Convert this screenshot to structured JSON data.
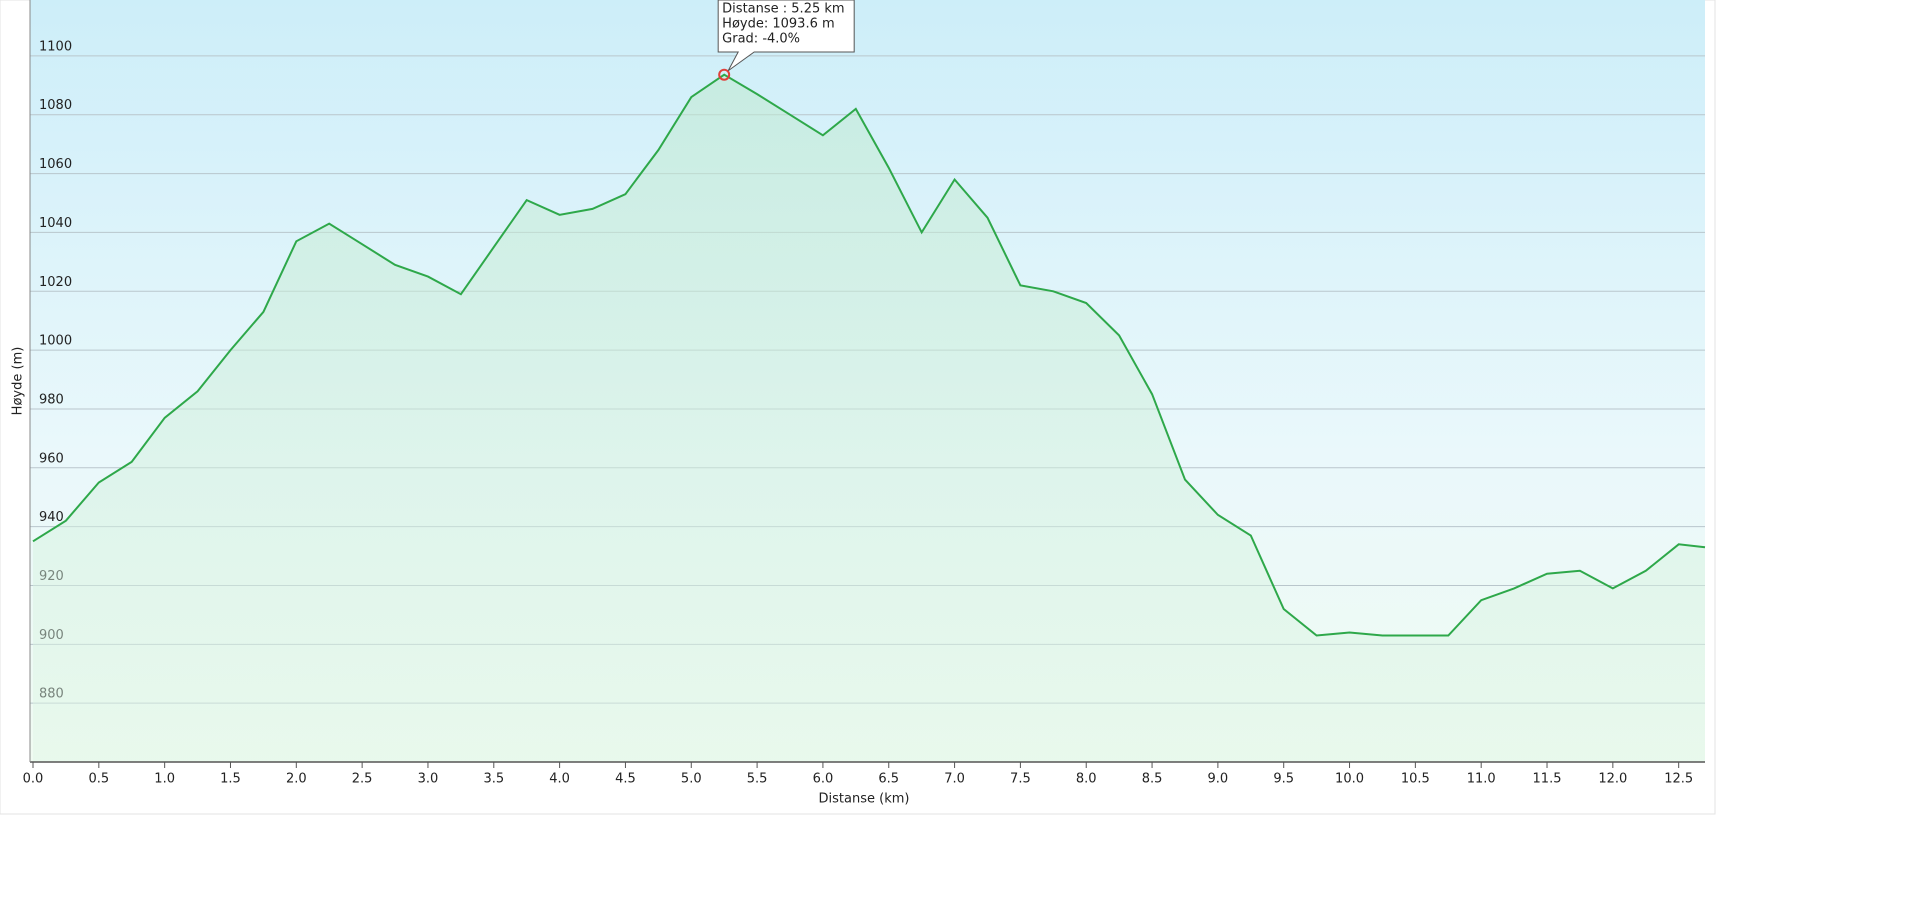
{
  "chart_data": {
    "type": "line",
    "ylabel": "Høyde (m)",
    "xlabel": "Distanse  (km)",
    "x": [
      0,
      0.25,
      0.5,
      0.75,
      1.0,
      1.25,
      1.5,
      1.75,
      2.0,
      2.25,
      2.5,
      2.75,
      3.0,
      3.25,
      3.5,
      3.75,
      4.0,
      4.25,
      4.5,
      4.75,
      5.0,
      5.25,
      5.5,
      5.75,
      6.0,
      6.25,
      6.5,
      6.75,
      7.0,
      7.25,
      7.5,
      7.75,
      8.0,
      8.25,
      8.5,
      8.75,
      9.0,
      9.25,
      9.5,
      9.75,
      10.0,
      10.25,
      10.5,
      10.75,
      11.0,
      11.25,
      11.5,
      11.75,
      12.0,
      12.25,
      12.5,
      12.7
    ],
    "series": [
      {
        "color": "#2ea84a",
        "values": [
          935,
          942,
          955,
          962,
          977,
          986,
          1000,
          1013,
          1037,
          1043,
          1036,
          1029,
          1025,
          1019,
          1035,
          1051,
          1046,
          1048,
          1053,
          1068,
          1086,
          1093.6,
          1087,
          1080,
          1073,
          1082,
          1062,
          1040,
          1058,
          1045,
          1022,
          1020,
          1016,
          1005,
          985,
          956,
          944,
          937,
          912,
          903,
          904,
          903,
          903,
          903,
          915,
          919,
          924,
          925,
          919,
          925,
          934,
          933
        ]
      }
    ],
    "xlim": [
      0,
      12.7
    ],
    "ylim": [
      860,
      1119
    ],
    "xticks": [
      {
        "value": 0,
        "label": "0.0"
      },
      0.5,
      {
        "value": 1,
        "label": "1.0"
      },
      1.5,
      {
        "value": 2,
        "label": "2.0"
      },
      2.5,
      {
        "value": 3,
        "label": "3.0"
      },
      3.5,
      {
        "value": 4,
        "label": "4.0"
      },
      4.5,
      {
        "value": 5,
        "label": "5.0"
      },
      5.5,
      {
        "value": 6,
        "label": "6.0"
      },
      6.5,
      {
        "value": 7,
        "label": "7.0"
      },
      7.5,
      {
        "value": 8,
        "label": "8.0"
      },
      8.5,
      {
        "value": 9,
        "label": "9.0"
      },
      9.5,
      {
        "value": 10,
        "label": "10.0"
      },
      10.5,
      {
        "value": 11,
        "label": "11.0"
      },
      11.5,
      {
        "value": 12,
        "label": "12.0"
      },
      12.5
    ],
    "yticks": [
      880,
      900,
      920,
      940,
      960,
      980,
      1000,
      1020,
      1040,
      1060,
      1080,
      1100
    ],
    "grid": true,
    "tooltip": {
      "point": 21,
      "lines": [
        "Distanse : 5.25 km",
        "Høyde: 1093.6 m",
        "Grad: -4.0%"
      ]
    }
  }
}
